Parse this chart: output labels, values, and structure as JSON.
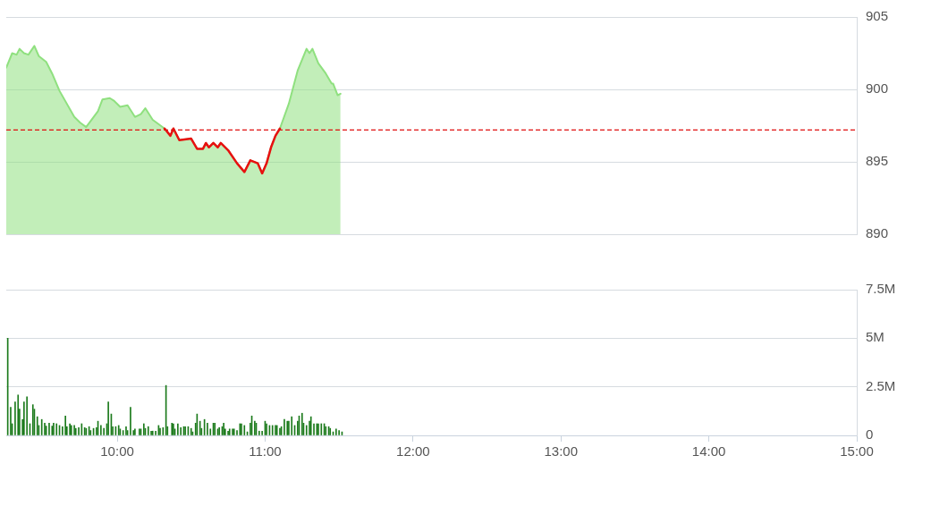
{
  "chart_data": [
    {
      "type": "area",
      "xlim": [
        9.25,
        15
      ],
      "ylim": [
        890,
        905
      ],
      "yticks": [
        890,
        895,
        900,
        905
      ],
      "tick_labels": "y",
      "grid": "y",
      "marker": "none",
      "ref_lines": [
        {
          "axis": "y",
          "value": 897.2,
          "color": "#e01010",
          "line_style": "dashed"
        }
      ],
      "series": [
        {
          "type": "area",
          "color": "#8fe07f",
          "x": [
            9.25,
            9.29,
            9.32,
            9.34,
            9.37,
            9.4,
            9.44,
            9.47,
            9.52,
            9.56,
            9.61,
            9.71,
            9.75,
            9.79,
            9.87,
            9.9,
            9.95,
            9.98,
            10.02,
            10.07,
            10.12,
            10.16,
            10.19,
            10.24,
            10.32,
            10.36,
            10.38,
            10.42,
            10.5,
            10.54,
            10.58,
            10.6,
            10.62,
            10.65,
            10.68,
            10.7,
            10.75,
            10.81,
            10.86,
            10.9,
            10.95,
            10.98,
            11.01,
            11.04,
            11.07,
            11.1,
            11.16,
            11.22,
            11.28,
            11.3,
            11.32,
            11.36,
            11.41,
            11.45,
            11.46,
            11.49,
            11.51
          ],
          "values": [
            901.5,
            902.5,
            902.4,
            902.8,
            902.5,
            902.4,
            903.0,
            902.3,
            901.9,
            901.1,
            899.9,
            898.1,
            897.7,
            897.4,
            898.5,
            899.3,
            899.4,
            899.2,
            898.8,
            898.9,
            898.1,
            898.3,
            898.7,
            897.9,
            897.3,
            896.8,
            897.3,
            896.5,
            896.6,
            895.9,
            895.9,
            896.3,
            896.0,
            896.3,
            896.0,
            896.3,
            895.8,
            894.9,
            894.3,
            895.1,
            894.9,
            894.2,
            894.9,
            896.0,
            896.8,
            897.3,
            899.0,
            901.3,
            902.8,
            902.5,
            902.8,
            901.8,
            901.1,
            900.4,
            900.4,
            899.6,
            899.7
          ]
        },
        {
          "type": "line",
          "color": "#e81010",
          "x": [
            10.32,
            10.36,
            10.38,
            10.42,
            10.5,
            10.54,
            10.58,
            10.6,
            10.62,
            10.65,
            10.68,
            10.7,
            10.75,
            10.81,
            10.86,
            10.9,
            10.95,
            10.98,
            11.01,
            11.04,
            11.07,
            11.1
          ],
          "values": [
            897.3,
            896.8,
            897.3,
            896.5,
            896.6,
            895.9,
            895.9,
            896.3,
            896.0,
            896.3,
            896.0,
            896.3,
            895.8,
            894.9,
            894.3,
            895.1,
            894.9,
            894.2,
            894.9,
            896.0,
            896.8,
            897.3
          ]
        }
      ]
    },
    {
      "type": "bar",
      "xlim": [
        9.25,
        15
      ],
      "xticks": [
        {
          "value": 10,
          "label": "10:00"
        },
        {
          "value": 11,
          "label": "11:00"
        },
        {
          "value": 12,
          "label": "12:00"
        },
        {
          "value": 13,
          "label": "13:00"
        },
        {
          "value": 14,
          "label": "14:00"
        },
        {
          "value": 15,
          "label": "15:00"
        }
      ],
      "ylim": [
        0,
        7.5
      ],
      "yticks": [
        {
          "value": 0,
          "label": "0"
        },
        {
          "value": 2.5,
          "label": "2.5M"
        },
        {
          "value": 5,
          "label": "5M"
        },
        {
          "value": 7.5,
          "label": "7.5M"
        }
      ],
      "grid": "y",
      "series": [
        {
          "color": "#1b7a1b",
          "x": [
            9.26,
            9.28,
            9.29,
            9.31,
            9.33,
            9.34,
            9.36,
            9.37,
            9.39,
            9.41,
            9.43,
            9.44,
            9.46,
            9.47,
            9.49,
            9.51,
            9.52,
            9.54,
            9.56,
            9.57,
            9.59,
            9.61,
            9.63,
            9.65,
            9.66,
            9.68,
            9.69,
            9.71,
            9.72,
            9.74,
            9.76,
            9.78,
            9.79,
            9.81,
            9.82,
            9.84,
            9.86,
            9.87,
            9.89,
            9.91,
            9.93,
            9.94,
            9.96,
            9.97,
            9.99,
            10.01,
            10.02,
            10.04,
            10.06,
            10.07,
            10.09,
            10.11,
            10.12,
            10.15,
            10.16,
            10.18,
            10.19,
            10.21,
            10.23,
            10.24,
            10.26,
            10.28,
            10.29,
            10.31,
            10.33,
            10.34,
            10.37,
            10.38,
            10.39,
            10.41,
            10.43,
            10.45,
            10.46,
            10.48,
            10.5,
            10.51,
            10.53,
            10.54,
            10.56,
            10.57,
            10.59,
            10.61,
            10.63,
            10.65,
            10.66,
            10.68,
            10.69,
            10.71,
            10.72,
            10.73,
            10.75,
            10.76,
            10.78,
            10.79,
            10.81,
            10.83,
            10.84,
            10.86,
            10.88,
            10.9,
            10.91,
            10.93,
            10.94,
            10.96,
            10.98,
            11.0,
            11.01,
            11.03,
            11.05,
            11.07,
            11.08,
            11.1,
            11.11,
            11.13,
            11.15,
            11.16,
            11.18,
            11.2,
            11.22,
            11.23,
            11.25,
            11.26,
            11.28,
            11.3,
            11.31,
            11.33,
            11.35,
            11.36,
            11.38,
            11.4,
            11.41,
            11.43,
            11.44,
            11.46,
            11.48,
            11.5,
            11.52
          ],
          "values": [
            5.0,
            1.45,
            0.6,
            1.72,
            2.08,
            1.35,
            0.82,
            1.72,
            1.99,
            0.6,
            1.58,
            1.35,
            0.96,
            0.51,
            0.82,
            0.63,
            0.48,
            0.63,
            0.48,
            0.63,
            0.6,
            0.51,
            0.45,
            1.0,
            0.45,
            0.6,
            0.51,
            0.51,
            0.36,
            0.4,
            0.6,
            0.4,
            0.36,
            0.45,
            0.25,
            0.36,
            0.4,
            0.73,
            0.51,
            0.36,
            0.6,
            1.72,
            1.1,
            0.45,
            0.45,
            0.51,
            0.33,
            0.25,
            0.45,
            0.25,
            1.45,
            0.25,
            0.33,
            0.33,
            0.33,
            0.6,
            0.36,
            0.45,
            0.22,
            0.22,
            0.22,
            0.51,
            0.36,
            0.4,
            2.57,
            0.45,
            0.63,
            0.6,
            0.33,
            0.6,
            0.4,
            0.45,
            0.45,
            0.45,
            0.36,
            0.18,
            0.63,
            1.1,
            0.73,
            0.36,
            0.82,
            0.63,
            0.33,
            0.63,
            0.63,
            0.33,
            0.4,
            0.45,
            0.63,
            0.33,
            0.22,
            0.33,
            0.33,
            0.33,
            0.25,
            0.6,
            0.6,
            0.51,
            0.18,
            0.63,
            1.0,
            0.73,
            0.63,
            0.22,
            0.22,
            0.73,
            0.6,
            0.51,
            0.51,
            0.51,
            0.51,
            0.36,
            0.45,
            0.82,
            0.73,
            0.73,
            0.96,
            0.51,
            0.73,
            1.0,
            1.14,
            0.63,
            0.51,
            0.73,
            0.96,
            0.6,
            0.6,
            0.6,
            0.6,
            0.6,
            0.45,
            0.45,
            0.36,
            0.18,
            0.33,
            0.25,
            0.18
          ]
        }
      ]
    }
  ]
}
